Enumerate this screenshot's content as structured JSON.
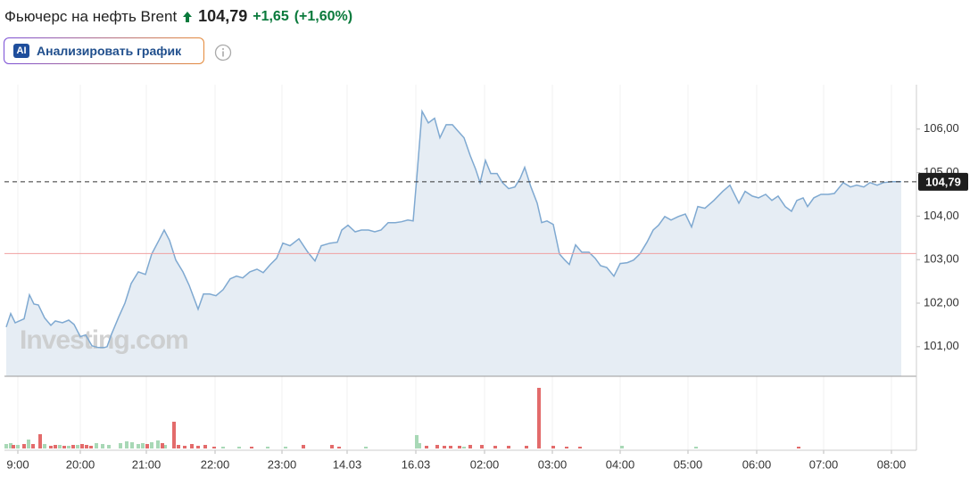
{
  "header": {
    "title": "Фьючерс на нефть Brent",
    "price": "104,79",
    "change": "+1,65",
    "change_pct": "(+1,60%)"
  },
  "button": {
    "icon": "AI",
    "label": "Анализировать график"
  },
  "chart_data": {
    "type": "area",
    "watermark": "Investing.com",
    "color": "#7fa9d1",
    "fill": "#e6edf4",
    "x": [
      7,
      12,
      17,
      27,
      33,
      38,
      43,
      50,
      57,
      62,
      70,
      77,
      83,
      90,
      96,
      103,
      110,
      117,
      120,
      125,
      133,
      140,
      147,
      155,
      163,
      170,
      178,
      184,
      190,
      197,
      205,
      212,
      222,
      228,
      235,
      242,
      250,
      258,
      265,
      272,
      280,
      288,
      295,
      303,
      310,
      317,
      325,
      335,
      345,
      353,
      360,
      370,
      378,
      383,
      390,
      398,
      405,
      413,
      420,
      427,
      435,
      443,
      450,
      457,
      463,
      467,
      473,
      480,
      487,
      493,
      500,
      507,
      513,
      520,
      527,
      533,
      538,
      544,
      550,
      557,
      563,
      570,
      577,
      583,
      588,
      595,
      602,
      607,
      613,
      620,
      627,
      633,
      638,
      645,
      652,
      660,
      667,
      673,
      680,
      688,
      695,
      703,
      710,
      717,
      725,
      732,
      738,
      745,
      752,
      760,
      768,
      775,
      782,
      790,
      800,
      810,
      818,
      828,
      835,
      843,
      850,
      858,
      865,
      872,
      880,
      887,
      893,
      900,
      905,
      912,
      920,
      928,
      935,
      945,
      953,
      960,
      968,
      975,
      983,
      990,
      1000,
      1010
    ],
    "values": [
      101.45,
      101.76,
      101.55,
      101.64,
      102.19,
      101.98,
      101.96,
      101.66,
      101.49,
      101.59,
      101.55,
      101.61,
      101.51,
      101.23,
      101.27,
      101.02,
      100.98,
      100.98,
      101.0,
      101.29,
      101.68,
      102.0,
      102.45,
      102.72,
      102.66,
      103.13,
      103.44,
      103.68,
      103.44,
      102.99,
      102.72,
      102.41,
      101.86,
      102.21,
      102.21,
      102.17,
      102.31,
      102.56,
      102.62,
      102.58,
      102.72,
      102.78,
      102.7,
      102.89,
      103.03,
      103.38,
      103.32,
      103.48,
      103.17,
      102.97,
      103.32,
      103.38,
      103.4,
      103.68,
      103.79,
      103.64,
      103.68,
      103.68,
      103.64,
      103.68,
      103.85,
      103.85,
      103.87,
      103.91,
      103.89,
      104.87,
      106.41,
      106.14,
      106.25,
      105.8,
      106.1,
      106.1,
      105.96,
      105.8,
      105.39,
      105.08,
      104.77,
      105.28,
      104.98,
      104.98,
      104.77,
      104.63,
      104.67,
      104.87,
      105.12,
      104.67,
      104.3,
      103.85,
      103.89,
      103.81,
      103.13,
      102.99,
      102.89,
      103.34,
      103.17,
      103.17,
      103.03,
      102.86,
      102.82,
      102.62,
      102.91,
      102.93,
      102.99,
      103.13,
      103.4,
      103.68,
      103.79,
      103.99,
      103.91,
      103.99,
      104.05,
      103.75,
      104.22,
      104.18,
      104.36,
      104.57,
      104.71,
      104.3,
      104.57,
      104.46,
      104.42,
      104.5,
      104.36,
      104.46,
      104.22,
      104.11,
      104.36,
      104.42,
      104.22,
      104.42,
      104.5,
      104.5,
      104.52,
      104.77,
      104.67,
      104.71,
      104.67,
      104.77,
      104.71,
      104.77,
      104.79,
      104.79
    ],
    "xlim": [
      5,
      1027
    ],
    "ylim": [
      100.32,
      107.02
    ],
    "xticks": [
      {
        "value": 20,
        "label": "9:00"
      },
      {
        "value": 90,
        "label": "20:00"
      },
      {
        "value": 164,
        "label": "21:00"
      },
      {
        "value": 241,
        "label": "22:00"
      },
      {
        "value": 316,
        "label": "23:00"
      },
      {
        "value": 389,
        "label": "14.03"
      },
      {
        "value": 466,
        "label": "16.03"
      },
      {
        "value": 543,
        "label": "02:00"
      },
      {
        "value": 619,
        "label": "03:00"
      },
      {
        "value": 695,
        "label": "04:00"
      },
      {
        "value": 771,
        "label": "05:00"
      },
      {
        "value": 848,
        "label": "06:00"
      },
      {
        "value": 923,
        "label": "07:00"
      },
      {
        "value": 999,
        "label": "08:00"
      }
    ],
    "yticks": [
      {
        "value": 101,
        "label": "101,00"
      },
      {
        "value": 102,
        "label": "102,00"
      },
      {
        "value": 103,
        "label": "103,00"
      },
      {
        "value": 104,
        "label": "104,00"
      },
      {
        "value": 105,
        "label": "105,00"
      },
      {
        "value": 106,
        "label": "106,00"
      }
    ],
    "grid": true,
    "price_line": {
      "value": 104.79,
      "label": "104,79"
    },
    "prev_close_line": {
      "value": 103.14,
      "color": "#f0a0a0"
    },
    "volume_series": [
      {
        "color": "#a8d8b6",
        "x": [
          7,
          12,
          20,
          32,
          50,
          67,
          77,
          87,
          108,
          115,
          122,
          135,
          142,
          148,
          155,
          160,
          170,
          177,
          185,
          250,
          268,
          300,
          320,
          410,
          467,
          470,
          520,
          697,
          780
        ],
        "values": [
          5,
          6,
          4,
          10,
          5,
          4,
          3,
          4,
          6,
          5,
          4,
          6,
          8,
          7,
          5,
          6,
          7,
          9,
          4,
          2,
          2,
          2,
          2,
          2,
          15,
          6,
          2,
          3,
          2
        ]
      },
      {
        "color": "#e36b6b",
        "x": [
          15,
          27,
          37,
          45,
          57,
          62,
          72,
          82,
          92,
          97,
          102,
          165,
          182,
          195,
          200,
          207,
          215,
          222,
          230,
          240,
          282,
          340,
          372,
          380,
          478,
          490,
          498,
          505,
          515,
          527,
          540,
          555,
          570,
          590,
          604,
          620,
          635,
          650,
          895
        ],
        "values": [
          4,
          5,
          5,
          16,
          3,
          4,
          3,
          4,
          5,
          4,
          3,
          5,
          6,
          30,
          4,
          3,
          5,
          3,
          4,
          2,
          2,
          4,
          4,
          2,
          3,
          4,
          3,
          3,
          3,
          4,
          4,
          3,
          3,
          3,
          68,
          3,
          2,
          2,
          2
        ]
      }
    ]
  }
}
